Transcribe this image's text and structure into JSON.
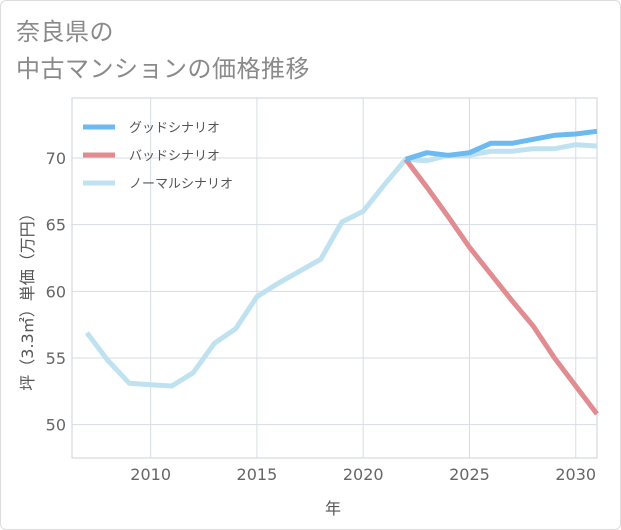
{
  "title": {
    "line1": "奈良県の",
    "line2": "中古マンションの価格推移"
  },
  "colors": {
    "good": "#6cbaf0",
    "bad": "#e08c91",
    "normal": "#bfe1f0",
    "grid": "#d6dde2",
    "frame": "#cdd3d8"
  },
  "chart_data": {
    "type": "line",
    "title": "奈良県の中古マンションの価格推移",
    "xlabel": "年",
    "ylabel": "坪（3.3㎡）単価（万円）",
    "xlim": [
      2006.3,
      2031
    ],
    "ylim": [
      47.5,
      74.5
    ],
    "xticks": [
      2010,
      2015,
      2020,
      2025,
      2030
    ],
    "yticks": [
      50,
      55,
      60,
      65,
      70
    ],
    "legend_position": "top-left",
    "series": [
      {
        "key": "normal",
        "name": "ノーマルシナリオ",
        "x": [
          2007,
          2008,
          2009,
          2010,
          2011,
          2012,
          2013,
          2014,
          2015,
          2016,
          2017,
          2018,
          2019,
          2020,
          2021,
          2022,
          2023,
          2024,
          2025,
          2026,
          2027,
          2028,
          2029,
          2030,
          2031
        ],
        "values": [
          56.9,
          54.8,
          53.1,
          53.0,
          52.9,
          53.9,
          56.1,
          57.2,
          59.6,
          60.6,
          61.5,
          62.4,
          65.2,
          66.0,
          68.0,
          69.9,
          69.8,
          70.2,
          70.2,
          70.5,
          70.5,
          70.7,
          70.7,
          71.0,
          70.9
        ]
      },
      {
        "key": "bad",
        "name": "バッドシナリオ",
        "x": [
          2022,
          2023,
          2024,
          2025,
          2026,
          2027,
          2028,
          2029,
          2030,
          2031
        ],
        "values": [
          69.9,
          67.8,
          65.6,
          63.3,
          61.3,
          59.3,
          57.4,
          55.0,
          52.9,
          50.8
        ]
      },
      {
        "key": "good",
        "name": "グッドシナリオ",
        "x": [
          2022,
          2023,
          2024,
          2025,
          2026,
          2027,
          2028,
          2029,
          2030,
          2031
        ],
        "values": [
          69.9,
          70.4,
          70.2,
          70.4,
          71.1,
          71.1,
          71.4,
          71.7,
          71.8,
          72.0
        ]
      }
    ],
    "legend": [
      "グッドシナリオ",
      "バッドシナリオ",
      "ノーマルシナリオ"
    ]
  }
}
